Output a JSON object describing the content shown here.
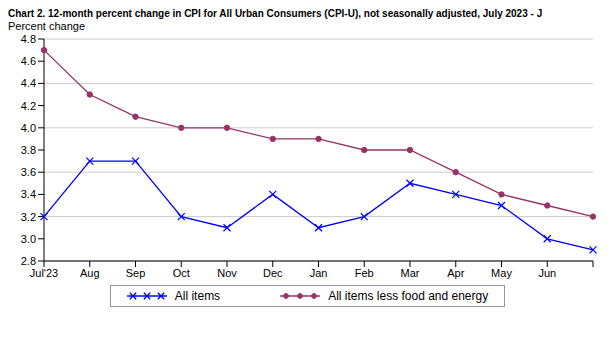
{
  "chart_data": {
    "type": "line",
    "title": "Chart 2. 12-month percent change in CPI for All Urban Consumers (CPI-U), not seasonally adjusted, July 2023 - J",
    "y_label": "Percent change",
    "categories": [
      "Jul'23",
      "Aug",
      "Sep",
      "Oct",
      "Nov",
      "Dec",
      "Jan",
      "Feb",
      "Mar",
      "Apr",
      "May",
      "Jun",
      null
    ],
    "series": [
      {
        "name": "All items",
        "color": "#0000ff",
        "marker": "x",
        "values": [
          3.2,
          3.7,
          3.7,
          3.2,
          3.1,
          3.4,
          3.1,
          3.2,
          3.5,
          3.4,
          3.3,
          3.0,
          2.9
        ]
      },
      {
        "name": "All items less food and energy",
        "color": "#993366",
        "marker": "circle",
        "values": [
          4.7,
          4.3,
          4.1,
          4.0,
          4.0,
          3.9,
          3.9,
          3.8,
          3.8,
          3.6,
          3.4,
          3.3,
          3.2
        ]
      }
    ],
    "ylim": [
      2.8,
      4.8
    ],
    "yticks": [
      2.8,
      {
        "value": 3,
        "label": "3.0"
      },
      3.2,
      3.4,
      3.6,
      3.8,
      {
        "value": 4,
        "label": "4.0"
      },
      4.2,
      4.4,
      4.6,
      4.8
    ],
    "grid": true,
    "legend": "bottom"
  }
}
